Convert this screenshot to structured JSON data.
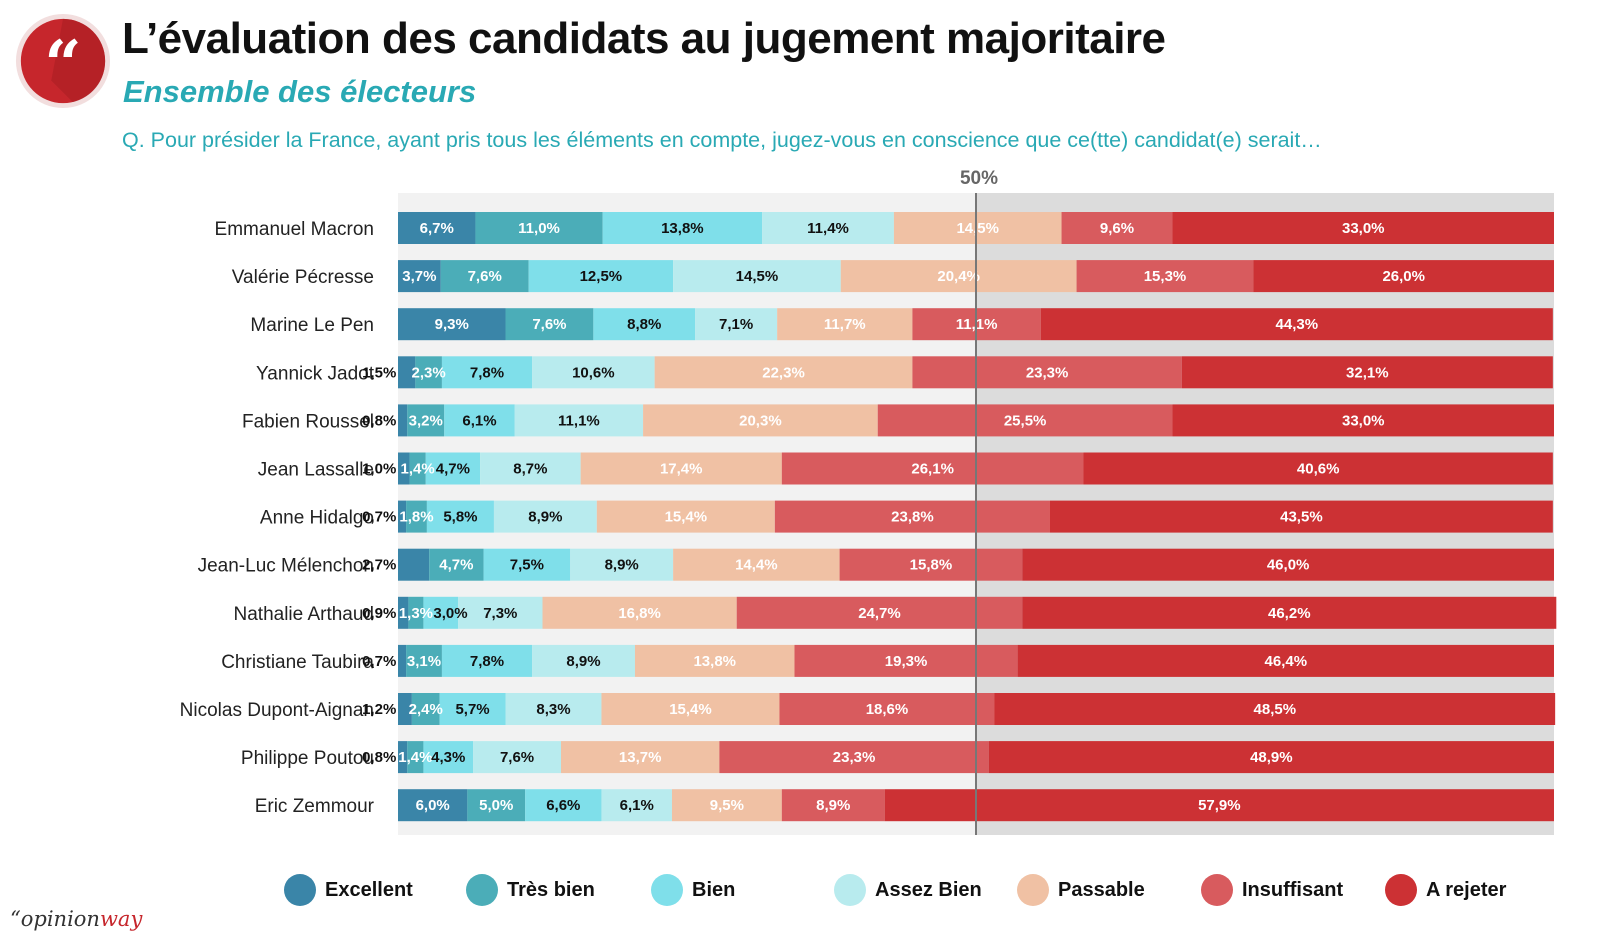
{
  "header": {
    "title": "L’évaluation des candidats au jugement majoritaire",
    "subtitle": "Ensemble des électeurs",
    "question": "Q. Pour présider la France, ayant pris tous les éléments en compte, jugez-vous en conscience que ce(tte) candidat(e) serait…",
    "logo_icon": "quotation-mark-icon"
  },
  "brand": {
    "prefix": "“opinion",
    "suffix": "way"
  },
  "chart_data": {
    "type": "bar",
    "orientation": "horizontal",
    "stacked": true,
    "title": "L’évaluation des candidats au jugement majoritaire",
    "subtitle": "Ensemble des électeurs",
    "xlim": [
      0,
      100
    ],
    "reference_line": {
      "value": 50,
      "label": "50%"
    },
    "legend_position": "bottom",
    "categories": [
      "Emmanuel Macron",
      "Valérie Pécresse",
      "Marine Le Pen",
      "Yannick Jadot",
      "Fabien Roussel",
      "Jean Lassalle",
      "Anne Hidalgo",
      "Jean-Luc Mélenchon",
      "Nathalie Arthaud",
      "Christiane Taubira",
      "Nicolas Dupont-Aignan",
      "Philippe Poutou",
      "Eric Zemmour"
    ],
    "series": [
      {
        "name": "Excellent",
        "color": "#3a85a8",
        "label_color": "#ffffff",
        "values": [
          6.7,
          3.7,
          9.3,
          1.5,
          0.8,
          1.0,
          0.7,
          2.7,
          0.9,
          0.7,
          1.2,
          0.8,
          6.0
        ],
        "labels": [
          "6,7%",
          "3,7%",
          "9,3%",
          "1,5%",
          "0,8%",
          "1,0%",
          "0,7%",
          "2,7%",
          "0,9%",
          "0,7%",
          "1,2%",
          "0,8%",
          "6,0%"
        ]
      },
      {
        "name": "Très bien",
        "color": "#4badb8",
        "label_color": "#ffffff",
        "values": [
          11.0,
          7.6,
          7.6,
          2.3,
          3.2,
          1.4,
          1.8,
          4.7,
          1.3,
          3.1,
          2.4,
          1.4,
          5.0
        ],
        "labels": [
          "11,0%",
          "7,6%",
          "7,6%",
          "2,3%",
          "3,2%",
          "1,4%",
          "1,8%",
          "4,7%",
          "1,3%",
          "3,1%",
          "2,4%",
          "1,4%",
          "5,0%"
        ]
      },
      {
        "name": "Bien",
        "color": "#7fdfea",
        "label_color": "#111111",
        "values": [
          13.8,
          12.5,
          8.8,
          7.8,
          6.1,
          4.7,
          5.8,
          7.5,
          3.0,
          7.8,
          5.7,
          4.3,
          6.6
        ],
        "labels": [
          "13,8%",
          "12,5%",
          "8,8%",
          "7,8%",
          "6,1%",
          "4,7%",
          "5,8%",
          "7,5%",
          "3,0%",
          "7,8%",
          "5,7%",
          "4,3%",
          "6,6%"
        ]
      },
      {
        "name": "Assez Bien",
        "color": "#b8ebee",
        "label_color": "#111111",
        "values": [
          11.4,
          14.5,
          7.1,
          10.6,
          11.1,
          8.7,
          8.9,
          8.9,
          7.3,
          8.9,
          8.3,
          7.6,
          6.1
        ],
        "labels": [
          "11,4%",
          "14,5%",
          "7,1%",
          "10,6%",
          "11,1%",
          "8,7%",
          "8,9%",
          "8,9%",
          "7,3%",
          "8,9%",
          "8,3%",
          "7,6%",
          "6,1%"
        ]
      },
      {
        "name": "Passable",
        "color": "#f0c1a4",
        "label_color": "#ffffff",
        "values": [
          14.5,
          20.4,
          11.7,
          22.3,
          20.3,
          17.4,
          15.4,
          14.4,
          16.8,
          13.8,
          15.4,
          13.7,
          9.5
        ],
        "labels": [
          "14,5%",
          "20,4%",
          "11,7%",
          "22,3%",
          "20,3%",
          "17,4%",
          "15,4%",
          "14,4%",
          "16,8%",
          "13,8%",
          "15,4%",
          "13,7%",
          "9,5%"
        ]
      },
      {
        "name": "Insuffisant",
        "color": "#d85b5e",
        "label_color": "#ffffff",
        "values": [
          9.6,
          15.3,
          11.1,
          23.3,
          25.5,
          26.1,
          23.8,
          15.8,
          24.7,
          19.3,
          18.6,
          23.3,
          8.9
        ],
        "labels": [
          "9,6%",
          "15,3%",
          "11,1%",
          "23,3%",
          "25,5%",
          "26,1%",
          "23,8%",
          "15,8%",
          "24,7%",
          "19,3%",
          "18,6%",
          "23,3%",
          "8,9%"
        ]
      },
      {
        "name": "A rejeter",
        "color": "#cc3134",
        "label_color": "#ffffff",
        "values": [
          33.0,
          26.0,
          44.3,
          32.1,
          33.0,
          40.6,
          43.5,
          46.0,
          46.2,
          46.4,
          48.5,
          48.9,
          57.9
        ],
        "labels": [
          "33,0%",
          "26,0%",
          "44,3%",
          "32,1%",
          "33,0%",
          "40,6%",
          "43,5%",
          "46,0%",
          "46,2%",
          "46,4%",
          "48,5%",
          "48,9%",
          "57,9%"
        ]
      }
    ]
  }
}
